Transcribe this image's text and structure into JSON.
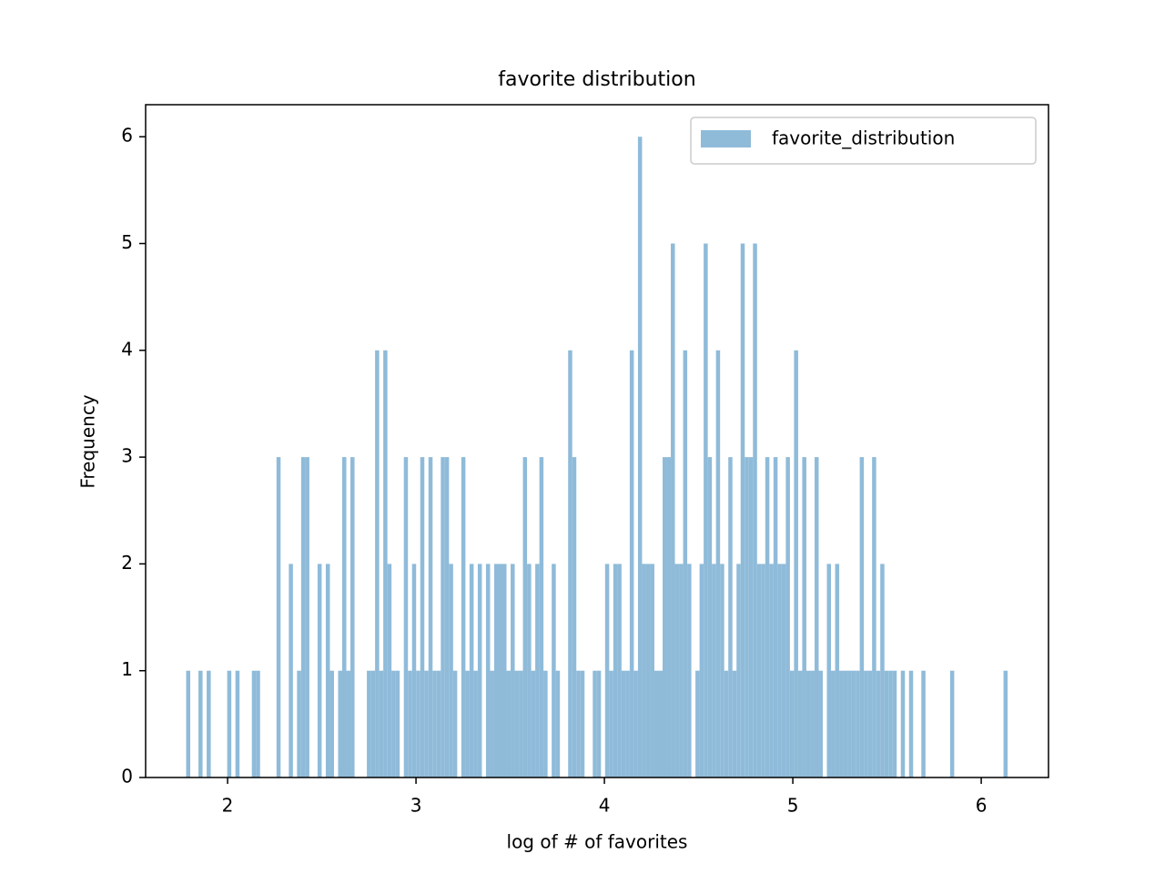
{
  "chart_data": {
    "type": "histogram",
    "title": "favorite distribution",
    "xlabel": "log of # of favorites",
    "ylabel": "Frequency",
    "bins": [
      1.78,
      1.8018,
      1.8236,
      1.8454,
      1.8672,
      1.889,
      1.9108,
      1.9326,
      1.9544,
      1.9762,
      1.998,
      2.0198,
      2.0416,
      2.0634,
      2.0852,
      2.107,
      2.1288,
      2.1506,
      2.1724,
      2.1942,
      2.216,
      2.2378,
      2.2596,
      2.2814,
      2.3032,
      2.325,
      2.3468,
      2.3686,
      2.3904,
      2.4122,
      2.434,
      2.4558,
      2.4776,
      2.4994,
      2.5212,
      2.543,
      2.5648,
      2.5866,
      2.6084,
      2.6302,
      2.652,
      2.6738,
      2.6956,
      2.7174,
      2.7392,
      2.761,
      2.7828,
      2.8046,
      2.8264,
      2.8482,
      2.87,
      2.8918,
      2.9136,
      2.9354,
      2.9572,
      2.979,
      3.0008,
      3.0226,
      3.0444,
      3.0662,
      3.088,
      3.1098,
      3.1316,
      3.1534,
      3.1752,
      3.197,
      3.2188,
      3.2406,
      3.2624,
      3.2842,
      3.306,
      3.3278,
      3.3496,
      3.3714,
      3.3932,
      3.415,
      3.4368,
      3.4586,
      3.4804,
      3.5022,
      3.524,
      3.5458,
      3.5676,
      3.5894,
      3.6112,
      3.633,
      3.6548,
      3.6766,
      3.6984,
      3.7202,
      3.742,
      3.7638,
      3.7856,
      3.8074,
      3.8292,
      3.851,
      3.8728,
      3.8946,
      3.9164,
      3.9382,
      3.96,
      3.9818,
      4.0036,
      4.0254,
      4.0472,
      4.069,
      4.0908,
      4.1126,
      4.1344,
      4.1562,
      4.178,
      4.1998,
      4.2216,
      4.2434,
      4.2652,
      4.287,
      4.3088,
      4.3306,
      4.3524,
      4.3742,
      4.396,
      4.4178,
      4.4396,
      4.4614,
      4.4832,
      4.505,
      4.5268,
      4.5486,
      4.5704,
      4.5922,
      4.614,
      4.6358,
      4.6576,
      4.6794,
      4.7012,
      4.723,
      4.7448,
      4.7666,
      4.7884,
      4.8102,
      4.832,
      4.8538,
      4.8756,
      4.8974,
      4.9192,
      4.941,
      4.9628,
      4.9846,
      5.0064,
      5.0282,
      5.05,
      5.0718,
      5.0936,
      5.1154,
      5.1372,
      5.159,
      5.1808,
      5.2026,
      5.2244,
      5.2462,
      5.268,
      5.2898,
      5.3116,
      5.3334,
      5.3552,
      5.377,
      5.3988,
      5.4206,
      5.4424,
      5.4642,
      5.486,
      5.5078,
      5.5296,
      5.5514,
      5.5732,
      5.595,
      5.6168,
      5.6386,
      5.6604,
      5.6822,
      5.704,
      5.7258,
      5.7476,
      5.7694,
      5.7912,
      5.813,
      5.8348,
      5.8566,
      5.8784,
      5.9002,
      5.922,
      5.9438,
      5.9656,
      5.9874,
      6.0092,
      6.031,
      6.0528,
      6.0746,
      6.0964,
      6.1182,
      6.14
    ],
    "series": [
      {
        "name": "favorite_distribution",
        "color": "#8fbbd9",
        "values": [
          1,
          0,
          0,
          1,
          0,
          1,
          0,
          0,
          0,
          0,
          1,
          0,
          1,
          0,
          0,
          0,
          1,
          1,
          0,
          0,
          0,
          0,
          3,
          0,
          0,
          2,
          0,
          1,
          3,
          3,
          0,
          0,
          2,
          0,
          2,
          1,
          0,
          1,
          3,
          1,
          3,
          0,
          0,
          0,
          1,
          1,
          4,
          1,
          4,
          2,
          1,
          1,
          0,
          3,
          1,
          2,
          1,
          3,
          1,
          3,
          1,
          1,
          3,
          3,
          2,
          1,
          0,
          3,
          1,
          2,
          1,
          2,
          0,
          2,
          1,
          2,
          2,
          2,
          1,
          2,
          1,
          1,
          3,
          2,
          1,
          2,
          3,
          1,
          0,
          2,
          1,
          0,
          0,
          4,
          3,
          1,
          1,
          0,
          0,
          1,
          1,
          0,
          2,
          1,
          2,
          2,
          1,
          1,
          4,
          1,
          6,
          2,
          2,
          2,
          1,
          1,
          3,
          3,
          5,
          2,
          2,
          4,
          2,
          0,
          1,
          2,
          5,
          3,
          2,
          4,
          2,
          1,
          3,
          1,
          2,
          5,
          3,
          3,
          5,
          2,
          2,
          3,
          2,
          3,
          2,
          2,
          3,
          1,
          4,
          1,
          3,
          1,
          1,
          3,
          1,
          0,
          2,
          1,
          2,
          1,
          1,
          1,
          1,
          1,
          3,
          1,
          1,
          3,
          1,
          2,
          1,
          1,
          1,
          0,
          1,
          0,
          1,
          0,
          0,
          1,
          0,
          0,
          0,
          0,
          0,
          0,
          1,
          0,
          0,
          0,
          0,
          0,
          0,
          0,
          0,
          0,
          0,
          0,
          0,
          1
        ]
      }
    ],
    "xlim": [
      1.565,
      6.357
    ],
    "ylim": [
      0,
      6.3
    ],
    "xticks": [
      2,
      3,
      4,
      5,
      6
    ],
    "yticks": [
      0,
      1,
      2,
      3,
      4,
      5,
      6
    ],
    "legend": "upper right"
  }
}
